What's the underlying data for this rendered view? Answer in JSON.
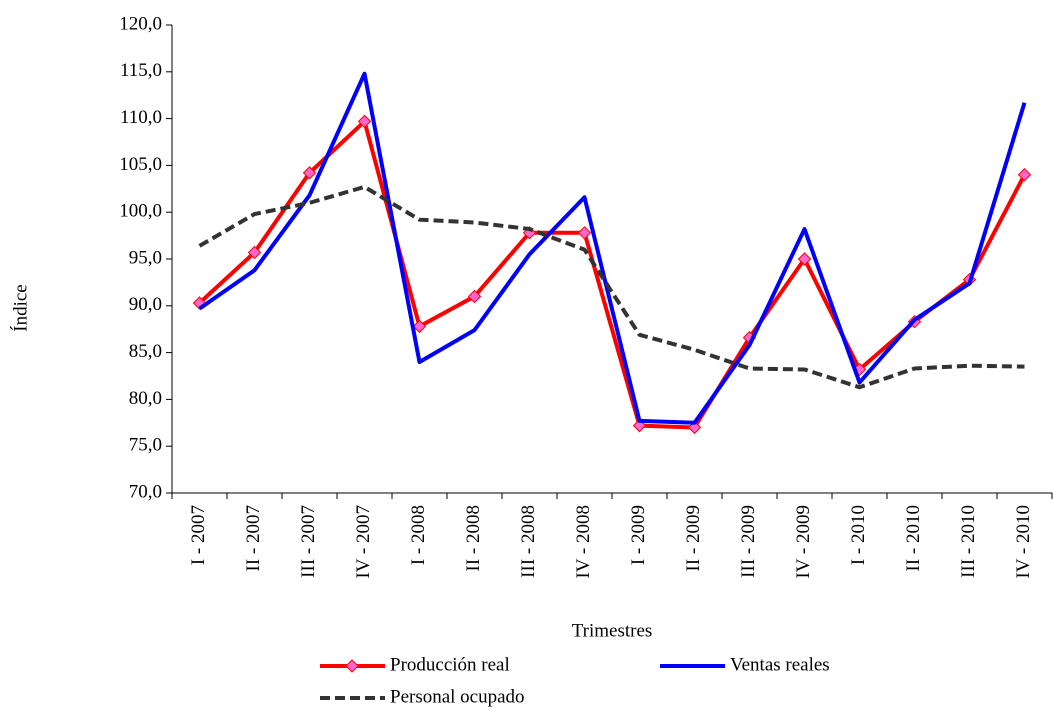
{
  "chart_data": {
    "type": "line",
    "y_label": "Índice",
    "x_label": "Trimestres",
    "categories": [
      "I - 2007",
      "II - 2007",
      "III - 2007",
      "IV - 2007",
      "I - 2008",
      "II - 2008",
      "III - 2008",
      "IV - 2008",
      "I - 2009",
      "II - 2009",
      "III - 2009",
      "IV - 2009",
      "I - 2010",
      "II - 2010",
      "III - 2010",
      "IV - 2010"
    ],
    "series": [
      {
        "name": "Producción real",
        "color": "#ff0000",
        "marker": "diamond",
        "values": [
          90.3,
          95.7,
          104.2,
          109.7,
          87.8,
          91.0,
          97.8,
          97.8,
          77.2,
          77.0,
          86.6,
          95.0,
          83.2,
          88.3,
          92.8,
          104.0
        ]
      },
      {
        "name": "Ventas reales",
        "color": "#0000ff",
        "values": [
          89.7,
          93.8,
          101.8,
          114.8,
          84.0,
          87.4,
          95.5,
          101.6,
          77.7,
          77.5,
          85.8,
          98.2,
          81.8,
          88.5,
          92.4,
          111.7
        ]
      },
      {
        "name": "Personal ocupado",
        "color": "#333333",
        "dashed": true,
        "values": [
          96.4,
          99.8,
          101.0,
          102.7,
          99.2,
          98.9,
          98.2,
          96.0,
          86.9,
          85.3,
          83.3,
          83.2,
          81.3,
          83.3,
          83.6,
          83.5
        ]
      }
    ],
    "ylim": [
      70,
      120
    ],
    "yticks": [
      {
        "value": 70,
        "label": "70,0"
      },
      {
        "value": 75,
        "label": "75,0"
      },
      {
        "value": 80,
        "label": "80,0"
      },
      {
        "value": 85,
        "label": "85,0"
      },
      {
        "value": 90,
        "label": "90,0"
      },
      {
        "value": 95,
        "label": "95,0"
      },
      {
        "value": 100,
        "label": "100,0"
      },
      {
        "value": 105,
        "label": "105,0"
      },
      {
        "value": 110,
        "label": "110,0"
      },
      {
        "value": 115,
        "label": "115,0"
      },
      {
        "value": 120,
        "label": "120,0"
      }
    ],
    "grid": false
  }
}
